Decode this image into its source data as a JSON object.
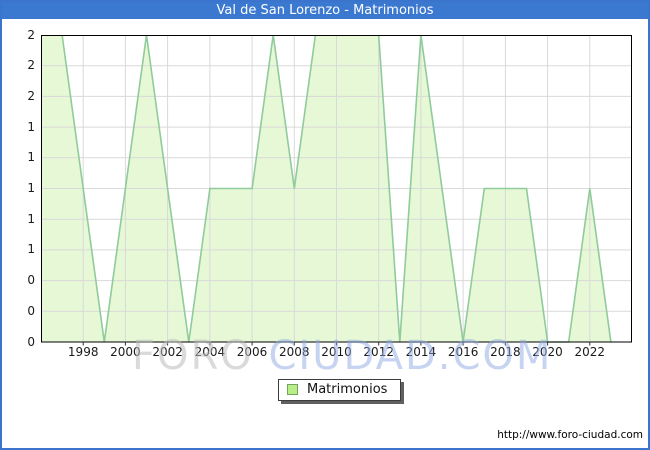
{
  "header": {
    "title": "Val de San Lorenzo - Matrimonios"
  },
  "watermark": {
    "part1": "FORO",
    "part2": "CIUDAD.COM"
  },
  "legend": {
    "items": [
      {
        "label": "Matrimonios"
      }
    ]
  },
  "footer": {
    "url": "http://www.foro-ciudad.com"
  },
  "colors": {
    "frame_blue": "#3a74cc",
    "titlebar_blue": "#3b79d1",
    "area_fill": "#e7f8d6",
    "area_line": "#90cb9c",
    "grid": "#d9d9d9",
    "plot_border": "#000000",
    "legend_swatch_fill": "#b9ee87",
    "legend_swatch_border": "#74a263"
  },
  "chart_data": {
    "type": "area",
    "title": "Val de San Lorenzo - Matrimonios",
    "x": [
      1996,
      1997,
      1998,
      1999,
      2000,
      2001,
      2002,
      2003,
      2004,
      2005,
      2006,
      2007,
      2008,
      2009,
      2010,
      2011,
      2012,
      2013,
      2014,
      2015,
      2016,
      2017,
      2018,
      2019,
      2020,
      2021,
      2022,
      2023
    ],
    "series": [
      {
        "name": "Matrimonios",
        "values": [
          2,
          2,
          1,
          0,
          1,
          2,
          1,
          0,
          1,
          1,
          1,
          2,
          1,
          2,
          2,
          2,
          2,
          0,
          2,
          1,
          0,
          1,
          1,
          1,
          0,
          0,
          1,
          0
        ]
      }
    ],
    "xlabel": "",
    "ylabel": "",
    "x_axis": {
      "range": [
        1996,
        2024
      ],
      "ticks": [
        1998,
        2000,
        2002,
        2004,
        2006,
        2008,
        2010,
        2012,
        2014,
        2016,
        2018,
        2020,
        2022
      ]
    },
    "y_axis": {
      "range": [
        0,
        2
      ],
      "ticks": [
        0,
        0.2,
        0.4,
        0.6,
        0.8,
        1.0,
        1.2,
        1.4,
        1.6,
        1.8,
        2.0
      ],
      "tick_label_format": "rounded-integer"
    },
    "grid": true,
    "legend_position": "bottom-center"
  }
}
